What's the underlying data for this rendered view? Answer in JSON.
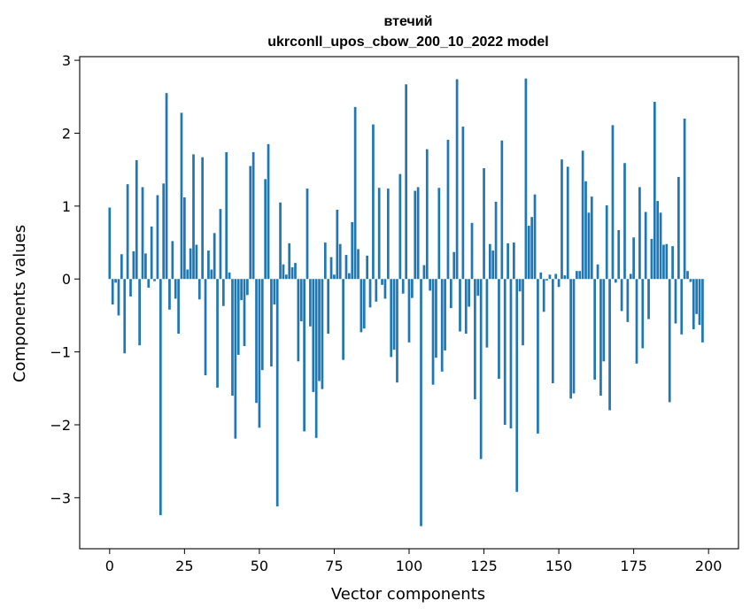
{
  "chart_data": {
    "type": "bar",
    "title": "втечий",
    "subtitle": "ukrconll_upos_cbow_200_10_2022 model",
    "xlabel": "Vector components",
    "ylabel": "Components values",
    "xlim": [
      -10,
      210
    ],
    "ylim": [
      -3.7,
      3.05
    ],
    "xticks": [
      0,
      25,
      50,
      75,
      100,
      125,
      150,
      175,
      200
    ],
    "yticks": [
      -3,
      -2,
      -1,
      0,
      1,
      2,
      3
    ],
    "xtick_labels": [
      "0",
      "25",
      "50",
      "75",
      "100",
      "125",
      "150",
      "175",
      "200"
    ],
    "ytick_labels": [
      "−3",
      "−2",
      "−1",
      "0",
      "1",
      "2",
      "3"
    ],
    "bar_color": "#1f77b4",
    "values": [
      0.98,
      -0.35,
      -0.05,
      -0.5,
      0.34,
      -1.02,
      1.3,
      -0.24,
      0.38,
      1.63,
      -0.91,
      1.26,
      0.35,
      -0.12,
      0.72,
      -0.03,
      1.15,
      -3.24,
      1.31,
      2.55,
      -0.42,
      0.52,
      -0.27,
      -0.75,
      2.28,
      1.12,
      0.13,
      0.42,
      1.71,
      0.47,
      -0.28,
      1.67,
      -1.32,
      0.39,
      0.13,
      0.63,
      -1.49,
      0.96,
      -0.37,
      1.74,
      0.09,
      -1.6,
      -2.19,
      -1.04,
      -0.29,
      -0.92,
      -0.22,
      1.55,
      1.74,
      -1.7,
      -2.04,
      -1.25,
      1.37,
      1.85,
      -1.2,
      -0.35,
      -3.12,
      1.05,
      0.2,
      0.06,
      0.49,
      0.16,
      0.22,
      -1.13,
      -0.58,
      -2.09,
      1.24,
      -0.65,
      -1.55,
      -2.18,
      -1.4,
      -1.51,
      0.5,
      -0.75,
      0.3,
      0.06,
      0.95,
      0.48,
      -1.11,
      0.33,
      0.08,
      0.78,
      2.36,
      0.41,
      -0.73,
      -0.68,
      0.32,
      -0.39,
      2.12,
      -0.31,
      1.25,
      -0.08,
      -0.27,
      1.24,
      -1.07,
      -0.97,
      -1.42,
      1.44,
      -0.2,
      2.67,
      -0.87,
      -0.26,
      1.21,
      1.26,
      -3.39,
      0.19,
      1.78,
      -0.16,
      -1.45,
      -1.08,
      1.25,
      -1.27,
      -0.98,
      1.91,
      -0.4,
      0.37,
      2.74,
      -0.72,
      2.09,
      -0.75,
      -0.38,
      0.77,
      -1.65,
      -0.23,
      -2.47,
      1.52,
      -0.94,
      0.48,
      0.39,
      1.06,
      -1.37,
      1.9,
      -2.0,
      0.49,
      -2.05,
      0.5,
      -2.92,
      -0.17,
      -0.91,
      2.75,
      0.73,
      0.85,
      1.16,
      -2.12,
      0.09,
      -0.45,
      -0.02,
      0.06,
      -1.43,
      0.07,
      -0.11,
      1.64,
      0.05,
      1.54,
      -1.64,
      -1.57,
      0.11,
      0.11,
      1.76,
      1.34,
      0.91,
      1.13,
      -1.38,
      0.2,
      -1.6,
      -1.13,
      1.01,
      -1.8,
      2.11,
      -0.05,
      0.67,
      -0.44,
      1.59,
      -0.59,
      0.07,
      0.57,
      -1.16,
      1.26,
      -0.95,
      0.92,
      -0.55,
      0.55,
      2.43,
      1.07,
      0.91,
      0.47,
      0.48,
      -1.69,
      0.45,
      -0.61,
      1.4,
      -0.76,
      2.2,
      0.11,
      -0.04,
      -0.69,
      -0.48,
      -0.63,
      -0.87
    ]
  }
}
